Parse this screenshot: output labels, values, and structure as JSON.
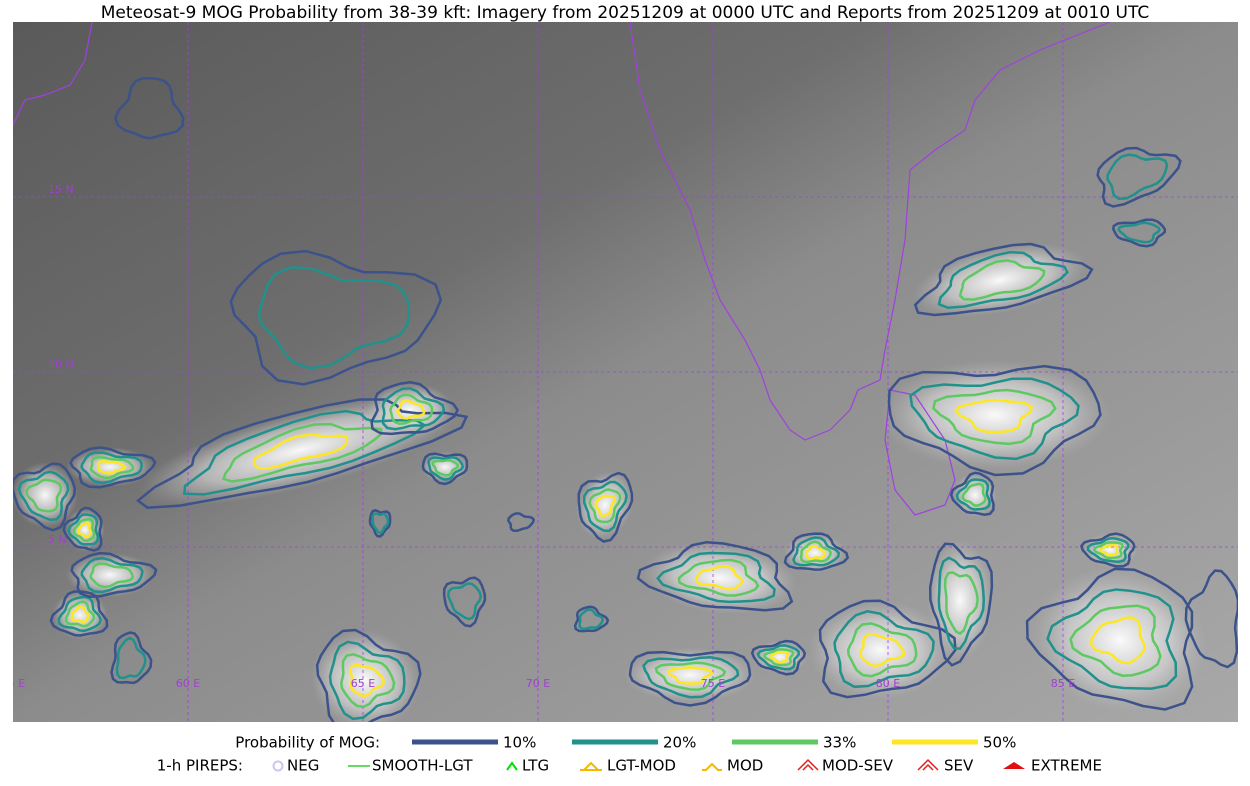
{
  "title": "Meteosat-9 MOG Probability from 38-39 kft: Imagery from 20251209 at 0000 UTC and Reports from 20251209 at 0010 UTC",
  "map": {
    "lat_labels": [
      "15 N",
      "10 N",
      "5 N"
    ],
    "lon_labels": [
      "55 E",
      "60 E",
      "65 E",
      "70 E",
      "75 E",
      "80 E",
      "85 E"
    ]
  },
  "legend": {
    "mog_label": "Probability of MOG:",
    "mog_levels": [
      {
        "label": "10%",
        "color": "#3b528b"
      },
      {
        "label": "20%",
        "color": "#21918c"
      },
      {
        "label": "33%",
        "color": "#5ec962"
      },
      {
        "label": "50%",
        "color": "#fde725"
      }
    ],
    "pirep_label": "1-h PIREPS:",
    "pireps": [
      {
        "label": "NEG",
        "color": "#c8c8f0"
      },
      {
        "label": "SMOOTH-LGT",
        "color": "#32cd32"
      },
      {
        "label": "LTG",
        "color": "#00e000"
      },
      {
        "label": "LGT-MOD",
        "color": "#f5b800"
      },
      {
        "label": "MOD",
        "color": "#f5b800"
      },
      {
        "label": "MOD-SEV",
        "color": "#e02020"
      },
      {
        "label": "SEV",
        "color": "#e02020"
      },
      {
        "label": "EXTREME",
        "color": "#e01010"
      }
    ]
  }
}
